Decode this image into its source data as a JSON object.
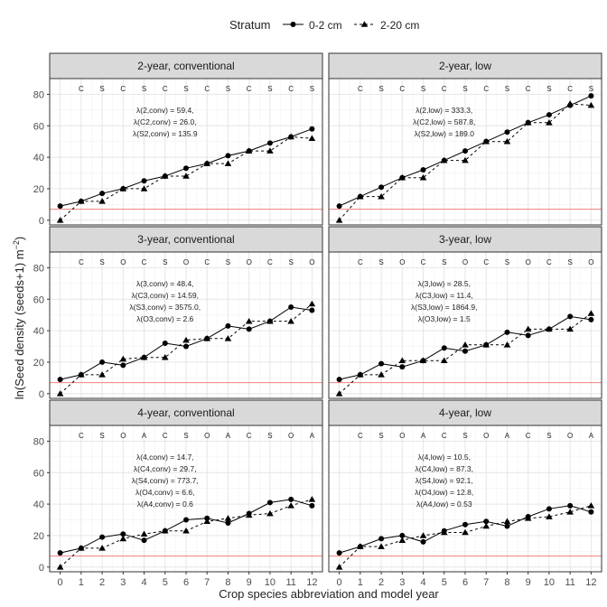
{
  "chart_data": {
    "type": "line",
    "xlabel": "Crop species abbreviation and model year",
    "ylabel": "ln(Seed density (seeds+1) m",
    "ylabel_sup": "−2",
    "ylabel_close": ")",
    "legend": {
      "title": "Stratum",
      "position": "top",
      "entries": [
        {
          "name": "0-2 cm",
          "marker": "circle",
          "line": "solid"
        },
        {
          "name": "2-20 cm",
          "marker": "triangle",
          "line": "dashed"
        }
      ]
    },
    "x": [
      0,
      1,
      2,
      3,
      4,
      5,
      6,
      7,
      8,
      9,
      10,
      11,
      12
    ],
    "ylim": [
      -3,
      90
    ],
    "yticks": [
      0,
      20,
      40,
      60,
      80
    ],
    "reference_line": {
      "y": 7,
      "color": "#f08080"
    },
    "grid": true,
    "panels": [
      {
        "title": "2-year, conventional",
        "crops": [
          "C",
          "S",
          "C",
          "S",
          "C",
          "S",
          "C",
          "S",
          "C",
          "S",
          "C",
          "S"
        ],
        "annotations": [
          "λ(2,conv) = 59.4,",
          "λ(C2,conv) = 26.0,",
          "λ(S2,conv) = 135.9"
        ],
        "series": [
          {
            "name": "0-2 cm",
            "values": [
              9,
              12,
              17,
              20,
              25,
              28,
              33,
              36,
              41,
              44,
              49,
              53,
              58
            ]
          },
          {
            "name": "2-20 cm",
            "values": [
              0,
              12,
              12,
              20,
              20,
              28,
              28,
              36,
              36,
              44,
              44,
              53,
              52
            ]
          }
        ]
      },
      {
        "title": "2-year, low",
        "crops": [
          "C",
          "S",
          "C",
          "S",
          "C",
          "S",
          "C",
          "S",
          "C",
          "S",
          "C",
          "S"
        ],
        "annotations": [
          "λ(2,low) = 333.3,",
          "λ(C2,low) = 587.8,",
          "λ(S2,low) = 189.0"
        ],
        "series": [
          {
            "name": "0-2 cm",
            "values": [
              9,
              15,
              21,
              27,
              32,
              38,
              44,
              50,
              56,
              62,
              67,
              73,
              79
            ]
          },
          {
            "name": "2-20 cm",
            "values": [
              0,
              15,
              15,
              27,
              27,
              38,
              38,
              50,
              50,
              62,
              62,
              74,
              73
            ]
          }
        ]
      },
      {
        "title": "3-year, conventional",
        "crops": [
          "C",
          "S",
          "O",
          "C",
          "S",
          "O",
          "C",
          "S",
          "O",
          "C",
          "S",
          "O"
        ],
        "annotations": [
          "λ(3,conv) = 48.4,",
          "λ(C3,conv) = 14.59,",
          "λ(S3,conv) = 3575.0,",
          "λ(O3,conv) = 2.6"
        ],
        "series": [
          {
            "name": "0-2 cm",
            "values": [
              9,
              12,
              20,
              18,
              23,
              32,
              30,
              35,
              43,
              41,
              46,
              55,
              53
            ]
          },
          {
            "name": "2-20 cm",
            "values": [
              0,
              12,
              12,
              22,
              23,
              23,
              34,
              35,
              35,
              46,
              46,
              46,
              57
            ]
          }
        ]
      },
      {
        "title": "3-year, low",
        "crops": [
          "C",
          "S",
          "O",
          "C",
          "S",
          "O",
          "C",
          "S",
          "O",
          "C",
          "S",
          "O"
        ],
        "annotations": [
          "λ(3,low) = 28.5,",
          "λ(C3,low) = 11.4,",
          "λ(S3,low) = 1864.9,",
          "λ(O3,low) = 1.5"
        ],
        "series": [
          {
            "name": "0-2 cm",
            "values": [
              9,
              12,
              19,
              17,
              21,
              29,
              27,
              31,
              39,
              37,
              41,
              49,
              47
            ]
          },
          {
            "name": "2-20 cm",
            "values": [
              0,
              12,
              12,
              21,
              21,
              21,
              31,
              31,
              31,
              41,
              41,
              41,
              51
            ]
          }
        ]
      },
      {
        "title": "4-year, conventional",
        "crops": [
          "C",
          "S",
          "O",
          "A",
          "C",
          "S",
          "O",
          "A",
          "C",
          "S",
          "O",
          "A"
        ],
        "annotations": [
          "λ(4,conv) = 14.7,",
          "λ(C4,conv) = 29.7,",
          "λ(S4,conv) = 773.7,",
          "λ(O4,conv) = 6.6,",
          "λ(A4,conv) = 0.6"
        ],
        "series": [
          {
            "name": "0-2 cm",
            "values": [
              9,
              12,
              19,
              21,
              17,
              23,
              30,
              31,
              28,
              34,
              41,
              43,
              39
            ]
          },
          {
            "name": "2-20 cm",
            "values": [
              0,
              12,
              12,
              18,
              21,
              23,
              23,
              29,
              31,
              33,
              34,
              39,
              43
            ]
          }
        ]
      },
      {
        "title": "4-year, low",
        "crops": [
          "C",
          "S",
          "O",
          "A",
          "C",
          "S",
          "O",
          "A",
          "C",
          "S",
          "O",
          "A"
        ],
        "annotations": [
          "λ(4,low) = 10.5,",
          "λ(C4,low) = 87.3,",
          "λ(S4,low) = 92.1,",
          "λ(O4,low) = 12.8,",
          "λ(A4,low) = 0.53"
        ],
        "series": [
          {
            "name": "0-2 cm",
            "values": [
              9,
              13,
              18,
              20,
              16,
              23,
              27,
              29,
              26,
              32,
              37,
              39,
              35
            ]
          },
          {
            "name": "2-20 cm",
            "values": [
              0,
              13,
              13,
              17,
              20,
              22,
              22,
              26,
              29,
              31,
              32,
              35,
              39
            ]
          }
        ]
      }
    ]
  }
}
